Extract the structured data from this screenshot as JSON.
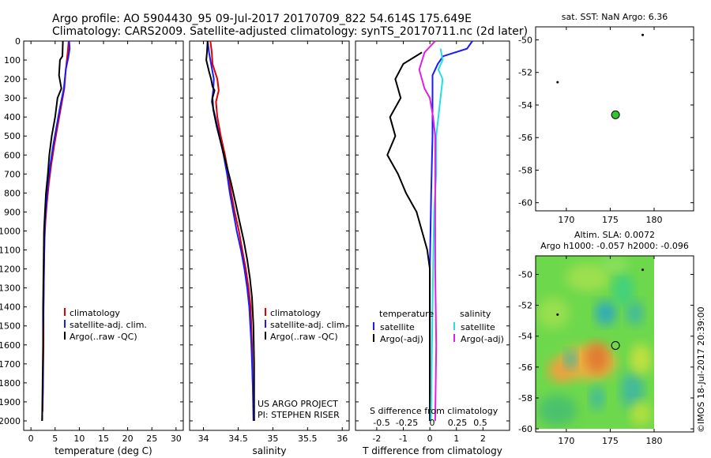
{
  "header": {
    "line1": "Argo profile: AO 5904430_95 09-Jul-2017 20170709_822 54.614S 175.649E",
    "line2": "Climatology: CARS2009. Satellite-adjusted climatology: synTS_20170711.nc (2d later)"
  },
  "colors": {
    "climatology": "#e00000",
    "satellite": "#1a1aff",
    "argo": "#000000",
    "sat_salinity": "#22e0e0",
    "argo_salinity": "#e020e0"
  },
  "chart_data": [
    {
      "type": "line",
      "xlabel": "temperature (deg C)",
      "ylim": [
        2050,
        0
      ],
      "xlim": [
        -1.5,
        31.5
      ],
      "xticks": [
        0,
        5,
        10,
        15,
        20,
        25,
        30
      ],
      "yticks": [
        0,
        100,
        200,
        300,
        400,
        500,
        600,
        700,
        800,
        900,
        1000,
        1100,
        1200,
        1300,
        1400,
        1500,
        1600,
        1700,
        1800,
        1900,
        2000
      ],
      "legend": [
        "climatology",
        "satellite-adj. clim.",
        "Argo(..raw -QC)"
      ],
      "series": [
        {
          "name": "climatology",
          "points": [
            [
              7.8,
              0
            ],
            [
              7.6,
              60
            ],
            [
              7.2,
              150
            ],
            [
              6.9,
              250
            ],
            [
              6.2,
              350
            ],
            [
              5.5,
              450
            ],
            [
              4.8,
              550
            ],
            [
              4.2,
              650
            ],
            [
              3.7,
              750
            ],
            [
              3.3,
              850
            ],
            [
              3.0,
              950
            ],
            [
              2.8,
              1050
            ],
            [
              2.7,
              1200
            ],
            [
              2.6,
              1400
            ],
            [
              2.6,
              1600
            ],
            [
              2.5,
              1800
            ],
            [
              2.4,
              1950
            ]
          ]
        },
        {
          "name": "satellite-adj. clim.",
          "points": [
            [
              7.9,
              0
            ],
            [
              8.0,
              40
            ],
            [
              7.7,
              90
            ],
            [
              7.2,
              150
            ],
            [
              6.8,
              250
            ],
            [
              6.0,
              350
            ],
            [
              5.3,
              450
            ],
            [
              4.6,
              550
            ],
            [
              4.0,
              650
            ],
            [
              3.5,
              750
            ],
            [
              3.2,
              850
            ],
            [
              2.9,
              950
            ],
            [
              2.8,
              1050
            ],
            [
              2.7,
              1200
            ],
            [
              2.6,
              1400
            ],
            [
              2.5,
              1600
            ],
            [
              2.5,
              1800
            ],
            [
              2.3,
              2000
            ]
          ]
        },
        {
          "name": "Argo(..raw -QC)",
          "points": [
            [
              6.6,
              0
            ],
            [
              6.5,
              80
            ],
            [
              6.0,
              100
            ],
            [
              5.8,
              180
            ],
            [
              6.3,
              250
            ],
            [
              5.5,
              300
            ],
            [
              5.0,
              400
            ],
            [
              4.3,
              500
            ],
            [
              3.8,
              600
            ],
            [
              3.5,
              700
            ],
            [
              3.1,
              800
            ],
            [
              2.9,
              900
            ],
            [
              2.7,
              1000
            ],
            [
              2.6,
              1200
            ],
            [
              2.5,
              1400
            ],
            [
              2.5,
              1600
            ],
            [
              2.4,
              1800
            ],
            [
              2.3,
              2000
            ]
          ]
        }
      ]
    },
    {
      "type": "line",
      "xlabel": "salinity",
      "ylim": [
        2050,
        0
      ],
      "xlim": [
        33.8,
        36.1
      ],
      "xticks": [
        34,
        34.5,
        35,
        35.5,
        36
      ],
      "legend": [
        "climatology",
        "satellite-adj. clim.",
        "Argo(..raw -QC)"
      ],
      "annotation": [
        "US ARGO PROJECT",
        "PI: STEPHEN RISER"
      ],
      "series": [
        {
          "name": "climatology",
          "points": [
            [
              34.1,
              0
            ],
            [
              34.12,
              60
            ],
            [
              34.13,
              120
            ],
            [
              34.2,
              200
            ],
            [
              34.22,
              260
            ],
            [
              34.18,
              320
            ],
            [
              34.2,
              400
            ],
            [
              34.25,
              500
            ],
            [
              34.31,
              600
            ],
            [
              34.36,
              700
            ],
            [
              34.4,
              800
            ],
            [
              34.45,
              900
            ],
            [
              34.51,
              1000
            ],
            [
              34.56,
              1100
            ],
            [
              34.61,
              1200
            ],
            [
              34.65,
              1300
            ],
            [
              34.68,
              1400
            ],
            [
              34.7,
              1600
            ],
            [
              34.71,
              1800
            ],
            [
              34.73,
              2000
            ]
          ]
        },
        {
          "name": "satellite-adj. clim.",
          "points": [
            [
              34.06,
              0
            ],
            [
              34.08,
              60
            ],
            [
              34.11,
              120
            ],
            [
              34.15,
              200
            ],
            [
              34.14,
              260
            ],
            [
              34.12,
              320
            ],
            [
              34.17,
              400
            ],
            [
              34.23,
              500
            ],
            [
              34.29,
              600
            ],
            [
              34.34,
              700
            ],
            [
              34.38,
              800
            ],
            [
              34.43,
              900
            ],
            [
              34.48,
              1000
            ],
            [
              34.54,
              1100
            ],
            [
              34.59,
              1200
            ],
            [
              34.63,
              1300
            ],
            [
              34.66,
              1400
            ],
            [
              34.69,
              1600
            ],
            [
              34.71,
              1800
            ],
            [
              34.72,
              2000
            ]
          ]
        },
        {
          "name": "Argo(..raw -QC)",
          "points": [
            [
              34.06,
              0
            ],
            [
              34.05,
              60
            ],
            [
              34.04,
              100
            ],
            [
              34.08,
              160
            ],
            [
              34.11,
              200
            ],
            [
              34.13,
              240
            ],
            [
              34.16,
              260
            ],
            [
              34.13,
              300
            ],
            [
              34.14,
              360
            ],
            [
              34.19,
              450
            ],
            [
              34.26,
              550
            ],
            [
              34.33,
              650
            ],
            [
              34.4,
              750
            ],
            [
              34.46,
              850
            ],
            [
              34.52,
              950
            ],
            [
              34.58,
              1050
            ],
            [
              34.63,
              1150
            ],
            [
              34.67,
              1250
            ],
            [
              34.7,
              1350
            ],
            [
              34.72,
              1500
            ],
            [
              34.73,
              1700
            ],
            [
              34.73,
              2000
            ]
          ]
        }
      ]
    },
    {
      "type": "line",
      "xlabel": "T difference from climatology",
      "xlabel2": "S difference from climatology",
      "ylim": [
        2050,
        0
      ],
      "xlim": [
        -2.8,
        3.0
      ],
      "xticks": [
        -2,
        -1,
        0,
        1,
        2
      ],
      "xticks2_labels": [
        "-0.5",
        "-0.25",
        "0",
        "0.25",
        "0.5"
      ],
      "legend_titles": [
        "temperature",
        "salinity"
      ],
      "legend": [
        "satellite",
        "Argo(-adj)",
        "satellite",
        "Argo(-adj)"
      ],
      "series": [
        {
          "name": "temperature satellite",
          "points": [
            [
              1.6,
              0
            ],
            [
              1.4,
              40
            ],
            [
              0.5,
              80
            ],
            [
              0.3,
              120
            ],
            [
              0.1,
              180
            ],
            [
              0.1,
              300
            ],
            [
              0.1,
              500
            ],
            [
              0.05,
              800
            ],
            [
              0.0,
              1200
            ],
            [
              0.0,
              1600
            ],
            [
              0.0,
              2000
            ]
          ]
        },
        {
          "name": "temperature Argo(-adj)",
          "points": [
            [
              -0.3,
              60
            ],
            [
              -1.0,
              120
            ],
            [
              -1.3,
              200
            ],
            [
              -1.1,
              300
            ],
            [
              -1.5,
              400
            ],
            [
              -1.3,
              500
            ],
            [
              -1.6,
              600
            ],
            [
              -1.2,
              700
            ],
            [
              -0.9,
              800
            ],
            [
              -0.5,
              900
            ],
            [
              -0.3,
              1000
            ],
            [
              -0.1,
              1100
            ],
            [
              0.0,
              1200
            ],
            [
              0.0,
              1600
            ],
            [
              0.0,
              2000
            ]
          ]
        },
        {
          "name": "salinity satellite",
          "points": [
            [
              0.1,
              40
            ],
            [
              0.12,
              100
            ],
            [
              0.08,
              150
            ],
            [
              0.12,
              200
            ],
            [
              0.1,
              300
            ],
            [
              0.08,
              400
            ],
            [
              0.06,
              500
            ],
            [
              0.06,
              700
            ],
            [
              0.04,
              900
            ],
            [
              0.03,
              1200
            ],
            [
              0.02,
              1600
            ],
            [
              0.01,
              2000
            ]
          ]
        },
        {
          "name": "salinity Argo(-adj)",
          "points": [
            [
              0.05,
              0
            ],
            [
              -0.05,
              60
            ],
            [
              -0.1,
              150
            ],
            [
              -0.05,
              250
            ],
            [
              0.0,
              300
            ],
            [
              0.03,
              400
            ],
            [
              0.05,
              500
            ],
            [
              0.05,
              700
            ],
            [
              0.05,
              900
            ],
            [
              0.05,
              1200
            ],
            [
              0.06,
              1600
            ],
            [
              0.05,
              2000
            ]
          ]
        }
      ]
    },
    {
      "type": "scatter",
      "title": "sat. SST: NaN Argo: 6.36",
      "xlim": [
        166.5,
        184.5
      ],
      "ylim": [
        -60.5,
        -49.2
      ],
      "xticks": [
        170,
        175,
        180
      ],
      "yticks": [
        -50,
        -52,
        -54,
        -56,
        -58,
        -60
      ],
      "points": [
        {
          "x": 178.7,
          "y": -49.7,
          "kind": "small"
        },
        {
          "x": 169.0,
          "y": -52.6,
          "kind": "small"
        },
        {
          "x": 175.6,
          "y": -54.6,
          "kind": "argo"
        }
      ]
    },
    {
      "type": "heatmap",
      "title_lines": [
        "Altim. SLA: 0.0072",
        "Argo h1000: -0.057 h2000: -0.096"
      ],
      "xlim": [
        166.5,
        184.5
      ],
      "ylim": [
        -60.2,
        -48.8
      ],
      "xticks": [
        170,
        175,
        180
      ],
      "yticks": [
        -50,
        -52,
        -54,
        -56,
        -58,
        -60
      ],
      "data_extent": {
        "x": [
          166.5,
          180.0
        ],
        "y": [
          -60.0,
          -48.8
        ]
      },
      "points": [
        {
          "x": 178.7,
          "y": -49.7,
          "kind": "small"
        },
        {
          "x": 169.0,
          "y": -52.6,
          "kind": "small"
        },
        {
          "x": 175.6,
          "y": -54.6,
          "kind": "argo"
        }
      ]
    }
  ],
  "credit": "©IMOS 18-Jul-2017 20:39:00"
}
